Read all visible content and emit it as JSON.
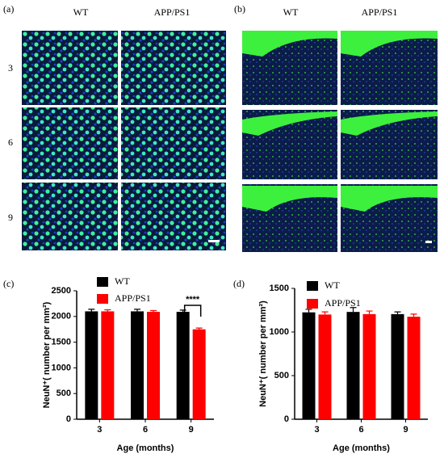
{
  "panels": {
    "a": {
      "label": "(a)",
      "columns": [
        "WT",
        "APP/PS1"
      ],
      "rows": [
        "3",
        "6",
        "9"
      ]
    },
    "b": {
      "label": "(b)",
      "columns": [
        "WT",
        "APP/PS1"
      ]
    }
  },
  "chart_data": [
    {
      "type": "bar",
      "label": "(c)",
      "ylabel": "NeuN⁺( number per mm²)",
      "xlabel": "Age (months)",
      "categories": [
        "3",
        "6",
        "9"
      ],
      "series": [
        {
          "name": "WT",
          "color": "#000000",
          "values": [
            2100,
            2100,
            2090
          ],
          "errors": [
            40,
            40,
            35
          ]
        },
        {
          "name": "APP/PS1",
          "color": "#ff0000",
          "values": [
            2100,
            2090,
            1750
          ],
          "errors": [
            30,
            25,
            25
          ]
        }
      ],
      "ylim": [
        0,
        2500
      ],
      "yticks": [
        0,
        500,
        1000,
        1500,
        2000,
        2500
      ],
      "legend": "upper left",
      "annotation": "****"
    },
    {
      "type": "bar",
      "label": "(d)",
      "ylabel": "NeuN⁺( number per mm²)",
      "xlabel": "Age (months)",
      "categories": [
        "3",
        "6",
        "9"
      ],
      "series": [
        {
          "name": "WT",
          "color": "#000000",
          "values": [
            1225,
            1230,
            1205
          ],
          "errors": [
            35,
            50,
            25
          ]
        },
        {
          "name": "APP/PS1",
          "color": "#ff0000",
          "values": [
            1200,
            1205,
            1175
          ],
          "errors": [
            30,
            35,
            30
          ]
        }
      ],
      "ylim": [
        0,
        1500
      ],
      "yticks": [
        0,
        500,
        1000,
        1500
      ],
      "legend": "upper left"
    }
  ]
}
